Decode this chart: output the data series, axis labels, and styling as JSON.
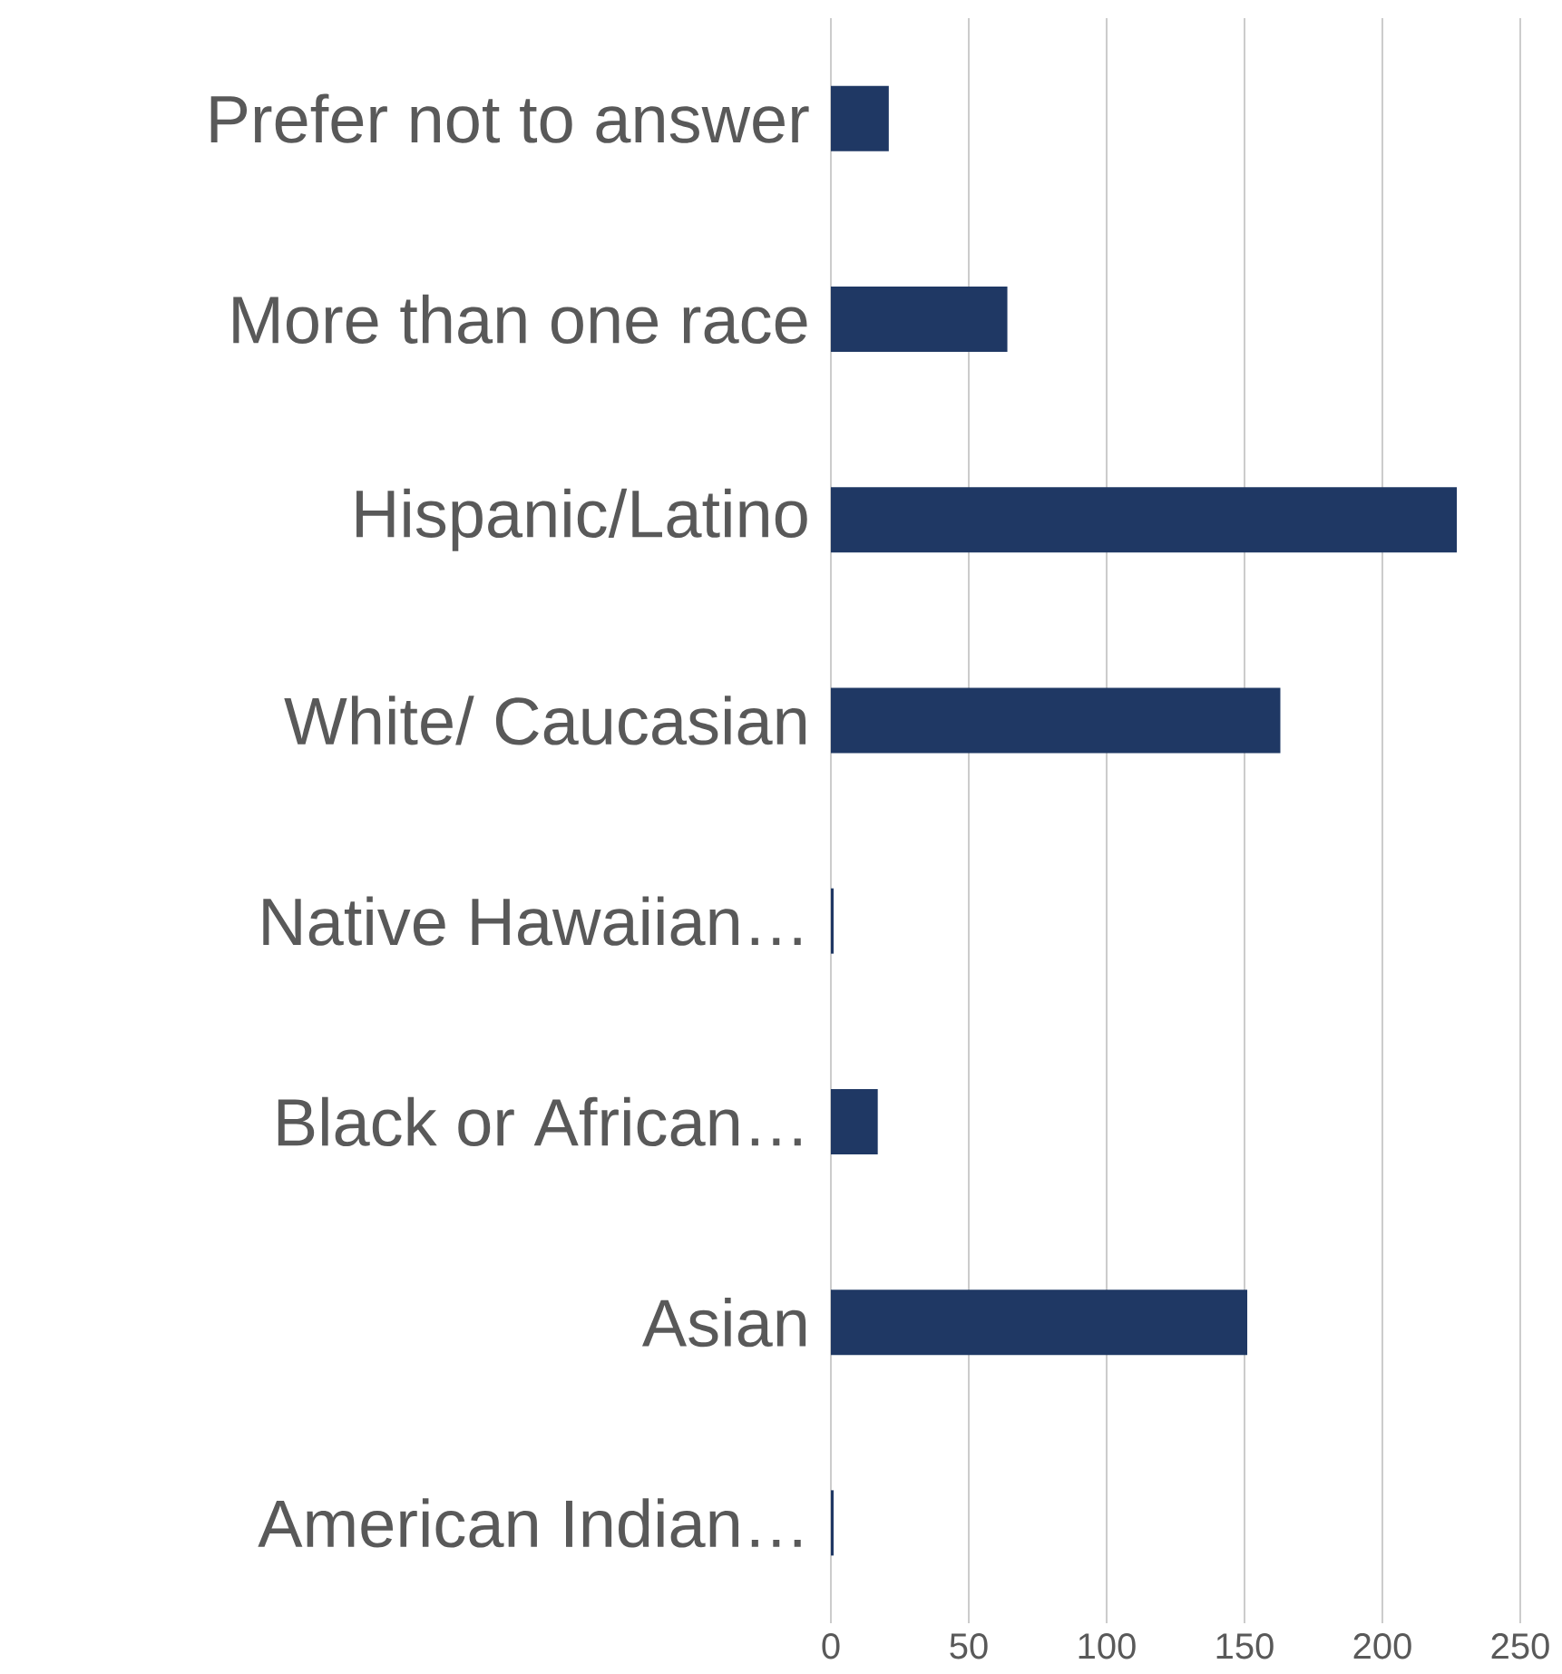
{
  "chart_data": {
    "type": "bar",
    "orientation": "horizontal",
    "categories": [
      "Prefer not to answer",
      "More than one race",
      "Hispanic/Latino",
      "White/ Caucasian",
      "Native Hawaiian…",
      "Black or African…",
      "Asian",
      "American Indian…"
    ],
    "values": [
      21,
      64,
      227,
      163,
      1,
      17,
      151,
      1
    ],
    "color": "#1f3864",
    "xlim": [
      0,
      250
    ],
    "xticks": [
      0,
      50,
      100,
      150,
      200,
      250
    ],
    "grid": "x"
  }
}
